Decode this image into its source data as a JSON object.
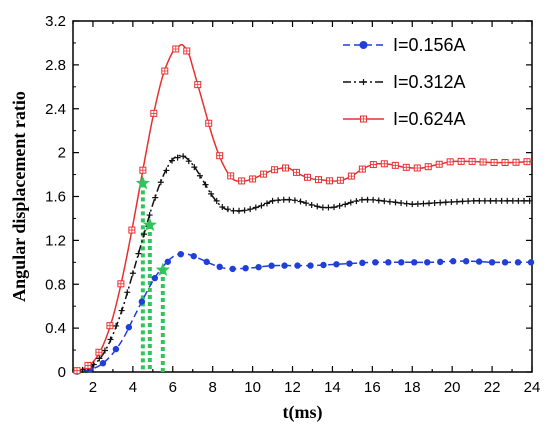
{
  "chart_data": {
    "type": "line",
    "xlabel": "t(ms)",
    "ylabel": "Angular displacement ratio",
    "xlim": [
      1,
      24
    ],
    "ylim": [
      0,
      3.2
    ],
    "xticks": [
      2,
      4,
      6,
      8,
      10,
      12,
      14,
      16,
      18,
      20,
      22,
      24
    ],
    "yticks": [
      0,
      0.4,
      0.8,
      1.2,
      1.6,
      2.0,
      2.4,
      2.8,
      3.2
    ],
    "ytick_labels": [
      "0",
      "0.4",
      "0.8",
      "1.2",
      "1.6",
      "2",
      "2.4",
      "2.8",
      "3.2"
    ],
    "grid": false,
    "legend_position": "top-right",
    "series": [
      {
        "name": "I=0.156A",
        "color": "#1f3fd8",
        "line_style": "dashed",
        "marker": "filled-circle",
        "marker_every": 0.65,
        "x": [
          1.0,
          1.5,
          2.0,
          2.5,
          3.0,
          3.5,
          4.0,
          4.5,
          5.0,
          5.5,
          6.0,
          6.5,
          7.0,
          7.5,
          8.0,
          8.5,
          9.0,
          10.0,
          11.0,
          12.0,
          13.0,
          14.0,
          15.0,
          16.0,
          17.0,
          18.0,
          19.0,
          20.0,
          21.0,
          22.0,
          23.0,
          24.0
        ],
        "values": [
          0.0,
          0.01,
          0.03,
          0.08,
          0.17,
          0.3,
          0.48,
          0.66,
          0.83,
          0.96,
          1.05,
          1.08,
          1.06,
          1.02,
          0.98,
          0.95,
          0.94,
          0.95,
          0.97,
          0.97,
          0.97,
          0.98,
          0.99,
          1.0,
          1.0,
          1.0,
          1.0,
          1.01,
          1.01,
          1.0,
          1.0,
          1.0
        ]
      },
      {
        "name": "I=0.312A",
        "color": "#111111",
        "line_style": "dashdot",
        "marker": "plus",
        "marker_every": 0.28,
        "x": [
          1.0,
          1.5,
          2.0,
          2.5,
          3.0,
          3.5,
          4.0,
          4.5,
          5.0,
          5.5,
          6.0,
          6.5,
          7.0,
          7.5,
          8.0,
          8.5,
          9.0,
          9.5,
          10.0,
          10.5,
          11.0,
          11.5,
          12.0,
          12.5,
          13.0,
          13.5,
          14.0,
          14.5,
          15.0,
          15.5,
          16.0,
          17.0,
          18.0,
          19.0,
          20.0,
          21.0,
          22.0,
          23.0,
          24.0
        ],
        "values": [
          0.0,
          0.02,
          0.06,
          0.16,
          0.34,
          0.59,
          0.9,
          1.22,
          1.53,
          1.78,
          1.94,
          1.97,
          1.89,
          1.75,
          1.6,
          1.5,
          1.47,
          1.47,
          1.49,
          1.52,
          1.56,
          1.57,
          1.57,
          1.55,
          1.52,
          1.5,
          1.5,
          1.52,
          1.55,
          1.57,
          1.57,
          1.55,
          1.53,
          1.54,
          1.55,
          1.56,
          1.56,
          1.56,
          1.56
        ]
      },
      {
        "name": "I=0.624A",
        "color": "#e83030",
        "line_style": "solid",
        "marker": "square-cross",
        "marker_every": 0.55,
        "x": [
          1.0,
          1.5,
          2.0,
          2.5,
          3.0,
          3.5,
          4.0,
          4.5,
          5.0,
          5.5,
          6.0,
          6.3,
          6.5,
          6.8,
          7.0,
          7.5,
          8.0,
          8.5,
          9.0,
          9.5,
          10.0,
          10.5,
          11.0,
          11.5,
          11.8,
          12.0,
          12.5,
          13.0,
          13.5,
          14.0,
          14.5,
          15.0,
          15.5,
          16.0,
          16.5,
          17.0,
          17.5,
          18.0,
          18.5,
          19.0,
          19.5,
          20.0,
          21.0,
          22.0,
          23.0,
          24.0
        ],
        "values": [
          0.0,
          0.03,
          0.09,
          0.24,
          0.5,
          0.88,
          1.34,
          1.84,
          2.32,
          2.7,
          2.92,
          2.97,
          2.98,
          2.9,
          2.78,
          2.46,
          2.14,
          1.9,
          1.76,
          1.74,
          1.76,
          1.8,
          1.84,
          1.86,
          1.86,
          1.84,
          1.79,
          1.76,
          1.75,
          1.74,
          1.75,
          1.79,
          1.85,
          1.89,
          1.9,
          1.89,
          1.87,
          1.86,
          1.86,
          1.88,
          1.9,
          1.92,
          1.92,
          1.91,
          1.91,
          1.92
        ]
      }
    ],
    "annotations": [
      {
        "type": "star-with-dropline",
        "x": 4.5,
        "y": 1.72,
        "color": "#2fc55a"
      },
      {
        "type": "star-with-dropline",
        "x": 4.85,
        "y": 1.34,
        "color": "#2fc55a"
      },
      {
        "type": "star-with-dropline",
        "x": 5.5,
        "y": 0.93,
        "color": "#2fc55a"
      }
    ]
  }
}
